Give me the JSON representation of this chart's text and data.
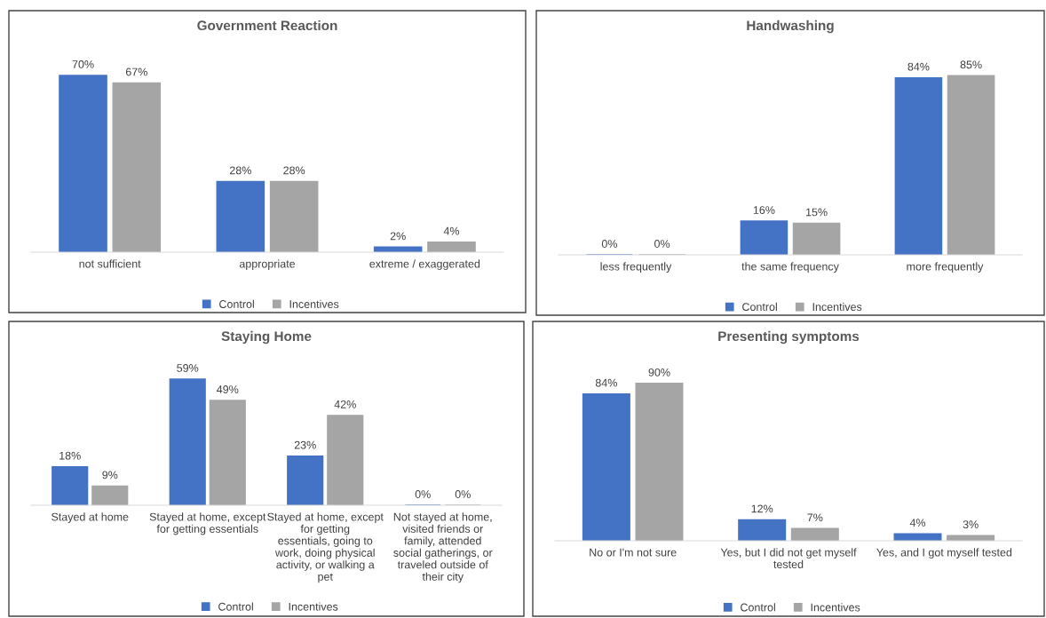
{
  "chart_data": [
    {
      "type": "bar",
      "title": "Government Reaction",
      "categories": [
        "not sufficient",
        "appropriate",
        "extreme / exaggerated"
      ],
      "legend": "bottom",
      "series": [
        {
          "name": "Control",
          "color": "#4472c4",
          "values": [
            70,
            28,
            2
          ],
          "value_labels": [
            "70%",
            "28%",
            "2%"
          ]
        },
        {
          "name": "Incentives",
          "color": "#a5a5a5",
          "values": [
            67,
            28,
            4
          ],
          "value_labels": [
            "67%",
            "28%",
            "4%"
          ]
        }
      ]
    },
    {
      "type": "bar",
      "title": "Handwashing",
      "categories": [
        "less frequently",
        "the same frequency",
        "more frequently"
      ],
      "legend": "bottom",
      "series": [
        {
          "name": "Control",
          "color": "#4472c4",
          "values": [
            0,
            16,
            84
          ],
          "value_labels": [
            "0%",
            "16%",
            "84%"
          ]
        },
        {
          "name": "Incentives",
          "color": "#a5a5a5",
          "values": [
            0,
            15,
            85
          ],
          "value_labels": [
            "0%",
            "15%",
            "85%"
          ]
        }
      ]
    },
    {
      "type": "bar",
      "title": "Staying Home",
      "categories": [
        "Stayed at home",
        "Stayed at home, except for getting essentials",
        "Stayed at home, except for getting essentials, going to work, doing physical activity, or walking a pet",
        "Not stayed at home, visited friends or family, attended social gatherings, or traveled outside of their city"
      ],
      "legend": "bottom",
      "series": [
        {
          "name": "Control",
          "color": "#4472c4",
          "values": [
            18,
            59,
            23,
            0
          ],
          "value_labels": [
            "18%",
            "59%",
            "23%",
            "0%"
          ]
        },
        {
          "name": "Incentives",
          "color": "#a5a5a5",
          "values": [
            9,
            49,
            42,
            0
          ],
          "value_labels": [
            "9%",
            "49%",
            "42%",
            "0%"
          ]
        }
      ]
    },
    {
      "type": "bar",
      "title": "Presenting symptoms",
      "categories": [
        "No or I'm not sure",
        "Yes, but I did not get myself tested",
        "Yes, and I got myself tested"
      ],
      "legend": "bottom",
      "series": [
        {
          "name": "Control",
          "color": "#4472c4",
          "values": [
            84,
            12,
            4
          ],
          "value_labels": [
            "84%",
            "12%",
            "4%"
          ]
        },
        {
          "name": "Incentives",
          "color": "#a5a5a5",
          "values": [
            90,
            7,
            3
          ],
          "value_labels": [
            "90%",
            "7%",
            "3%"
          ]
        }
      ]
    }
  ]
}
